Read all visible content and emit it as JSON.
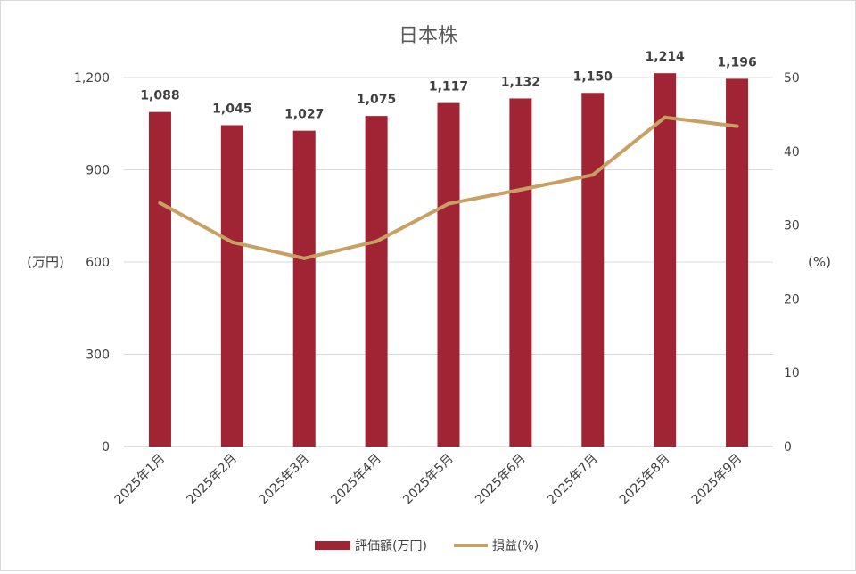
{
  "chart_data": {
    "type": "bar",
    "title": "日本株",
    "categories": [
      "2025年1月",
      "2025年2月",
      "2025年3月",
      "2025年4月",
      "2025年5月",
      "2025年6月",
      "2025年7月",
      "2025年8月",
      "2025年9月"
    ],
    "series": [
      {
        "name": "評価額(万円)",
        "type": "bar",
        "axis": "left",
        "color": "#a02433",
        "values": [
          1088,
          1045,
          1027,
          1075,
          1117,
          1132,
          1150,
          1214,
          1196
        ],
        "labels": [
          "1,088",
          "1,045",
          "1,027",
          "1,075",
          "1,117",
          "1,132",
          "1,150",
          "1,214",
          "1,196"
        ]
      },
      {
        "name": "損益(%)",
        "type": "line",
        "axis": "right",
        "color": "#c9a063",
        "values": [
          33.0,
          27.7,
          25.5,
          27.8,
          32.9,
          34.8,
          36.8,
          44.6,
          43.4
        ]
      }
    ],
    "y_left": {
      "label": "(万円)",
      "ylim": [
        0,
        1200
      ],
      "ticks": [
        0,
        300,
        600,
        900,
        1200
      ],
      "tick_labels": [
        "0",
        "300",
        "600",
        "900",
        "1,200"
      ]
    },
    "y_right": {
      "label": "(%)",
      "ylim": [
        0,
        50
      ],
      "ticks": [
        0,
        10,
        20,
        30,
        40,
        50
      ],
      "tick_labels": [
        "0",
        "10",
        "20",
        "30",
        "40",
        "50"
      ]
    },
    "grid": true,
    "legend": "bottom"
  }
}
